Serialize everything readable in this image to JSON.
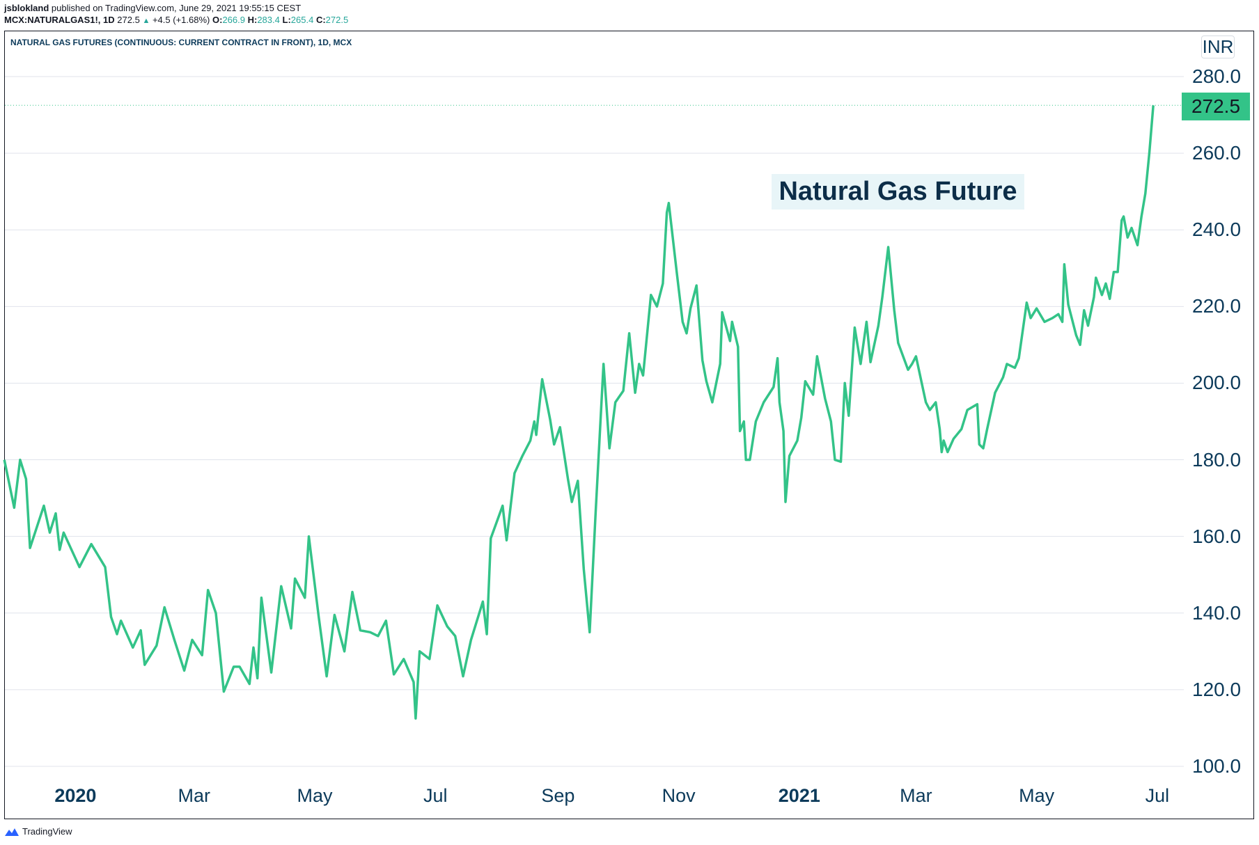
{
  "header": {
    "author": "jsblokland",
    "published": "published on TradingView.com, June 29, 2021 19:55:15 CEST",
    "symbol": "MCX:NATURALGAS1!, 1D",
    "last": "272.5",
    "change": "+4.5 (+1.68%)",
    "o_label": "O:",
    "o": "266.9",
    "h_label": "H:",
    "h": "283.4",
    "l_label": "L:",
    "l": "265.4",
    "c_label": "C:",
    "c": "272.5"
  },
  "chart_title": "NATURAL GAS FUTURES (CONTINUOUS: CURRENT CONTRACT IN FRONT), 1D, MCX",
  "currency": "INR",
  "annotation": "Natural Gas Future",
  "footer": "TradingView",
  "colors": {
    "line": "#33c388",
    "price_label": "#33c388",
    "text": "#0c3a5a",
    "grid": "#e0e3eb"
  },
  "chart_data": {
    "type": "line",
    "ylim": [
      100,
      280
    ],
    "yticks": [
      "280.0",
      "260.0",
      "240.0",
      "220.0",
      "200.0",
      "180.0",
      "160.0",
      "140.0",
      "120.0",
      "100.0"
    ],
    "ytick_values": [
      280,
      260,
      240,
      220,
      200,
      180,
      160,
      140,
      120,
      100
    ],
    "xticks": [
      {
        "label": "2020",
        "date": "2020-01-01",
        "year": true
      },
      {
        "label": "Mar",
        "date": "2020-03-01"
      },
      {
        "label": "May",
        "date": "2020-05-01"
      },
      {
        "label": "Jul",
        "date": "2020-07-01"
      },
      {
        "label": "Sep",
        "date": "2020-09-01"
      },
      {
        "label": "Nov",
        "date": "2020-11-01"
      },
      {
        "label": "2021",
        "date": "2021-01-01",
        "year": true
      },
      {
        "label": "Mar",
        "date": "2021-03-01"
      },
      {
        "label": "May",
        "date": "2021-05-01"
      },
      {
        "label": "Jul",
        "date": "2021-07-01"
      }
    ],
    "last_price": 272.5,
    "last_price_label": "272.5",
    "grid": true,
    "points": [
      [
        "2019-11-26",
        180
      ],
      [
        "2019-12-01",
        167.5
      ],
      [
        "2019-12-04",
        180
      ],
      [
        "2019-12-07",
        175
      ],
      [
        "2019-12-09",
        157
      ],
      [
        "2019-12-16",
        168
      ],
      [
        "2019-12-19",
        161
      ],
      [
        "2019-12-22",
        166
      ],
      [
        "2019-12-24",
        156.5
      ],
      [
        "2019-12-26",
        161
      ],
      [
        "2020-01-03",
        152
      ],
      [
        "2020-01-09",
        158
      ],
      [
        "2020-01-16",
        152
      ],
      [
        "2020-01-19",
        139
      ],
      [
        "2020-01-22",
        134.5
      ],
      [
        "2020-01-24",
        138
      ],
      [
        "2020-01-30",
        131
      ],
      [
        "2020-02-03",
        135.5
      ],
      [
        "2020-02-05",
        126.5
      ],
      [
        "2020-02-11",
        131.5
      ],
      [
        "2020-02-15",
        141.5
      ],
      [
        "2020-02-20",
        133
      ],
      [
        "2020-02-25",
        125
      ],
      [
        "2020-02-29",
        133
      ],
      [
        "2020-03-05",
        129
      ],
      [
        "2020-03-08",
        146
      ],
      [
        "2020-03-12",
        140
      ],
      [
        "2020-03-16",
        119.5
      ],
      [
        "2020-03-21",
        126
      ],
      [
        "2020-03-24",
        126
      ],
      [
        "2020-03-29",
        121.5
      ],
      [
        "2020-03-31",
        131
      ],
      [
        "2020-04-02",
        123
      ],
      [
        "2020-04-04",
        144
      ],
      [
        "2020-04-09",
        124.5
      ],
      [
        "2020-04-14",
        147
      ],
      [
        "2020-04-19",
        136
      ],
      [
        "2020-04-21",
        149
      ],
      [
        "2020-04-26",
        144
      ],
      [
        "2020-04-28",
        160
      ],
      [
        "2020-05-03",
        139
      ],
      [
        "2020-05-07",
        123.5
      ],
      [
        "2020-05-11",
        139.5
      ],
      [
        "2020-05-16",
        130
      ],
      [
        "2020-05-20",
        145.5
      ],
      [
        "2020-05-24",
        135.5
      ],
      [
        "2020-05-29",
        135
      ],
      [
        "2020-06-02",
        134
      ],
      [
        "2020-06-06",
        138
      ],
      [
        "2020-06-10",
        124
      ],
      [
        "2020-06-15",
        128
      ],
      [
        "2020-06-20",
        122
      ],
      [
        "2020-06-21",
        112.5
      ],
      [
        "2020-06-23",
        130
      ],
      [
        "2020-06-28",
        128
      ],
      [
        "2020-07-02",
        142
      ],
      [
        "2020-07-07",
        136.5
      ],
      [
        "2020-07-11",
        134
      ],
      [
        "2020-07-15",
        123.5
      ],
      [
        "2020-07-19",
        133
      ],
      [
        "2020-07-25",
        143
      ],
      [
        "2020-07-27",
        134.5
      ],
      [
        "2020-07-29",
        159.5
      ],
      [
        "2020-08-04",
        168
      ],
      [
        "2020-08-06",
        159
      ],
      [
        "2020-08-10",
        176.5
      ],
      [
        "2020-08-14",
        181
      ],
      [
        "2020-08-18",
        185
      ],
      [
        "2020-08-20",
        190
      ],
      [
        "2020-08-21",
        186.5
      ],
      [
        "2020-08-24",
        201
      ],
      [
        "2020-08-28",
        190.5
      ],
      [
        "2020-08-30",
        184
      ],
      [
        "2020-09-02",
        188.5
      ],
      [
        "2020-09-06",
        175
      ],
      [
        "2020-09-08",
        169
      ],
      [
        "2020-09-11",
        174.5
      ],
      [
        "2020-09-14",
        151.5
      ],
      [
        "2020-09-17",
        135
      ],
      [
        "2020-09-20",
        166
      ],
      [
        "2020-09-24",
        205
      ],
      [
        "2020-09-27",
        183
      ],
      [
        "2020-09-30",
        195
      ],
      [
        "2020-10-04",
        198
      ],
      [
        "2020-10-07",
        213
      ],
      [
        "2020-10-10",
        197.5
      ],
      [
        "2020-10-12",
        205
      ],
      [
        "2020-10-14",
        202
      ],
      [
        "2020-10-18",
        223
      ],
      [
        "2020-10-21",
        220
      ],
      [
        "2020-10-24",
        226
      ],
      [
        "2020-10-26",
        244.5
      ],
      [
        "2020-10-27",
        247
      ],
      [
        "2020-10-31",
        229
      ],
      [
        "2020-11-03",
        216
      ],
      [
        "2020-11-05",
        213
      ],
      [
        "2020-11-07",
        219.5
      ],
      [
        "2020-11-10",
        225.5
      ],
      [
        "2020-11-13",
        206
      ],
      [
        "2020-11-15",
        200.5
      ],
      [
        "2020-11-18",
        195
      ],
      [
        "2020-11-22",
        205
      ],
      [
        "2020-11-23",
        218.5
      ],
      [
        "2020-11-27",
        211
      ],
      [
        "2020-11-28",
        216
      ],
      [
        "2020-12-01",
        209.5
      ],
      [
        "2020-12-02",
        187.5
      ],
      [
        "2020-12-04",
        190
      ],
      [
        "2020-12-05",
        180
      ],
      [
        "2020-12-07",
        180
      ],
      [
        "2020-12-10",
        190
      ],
      [
        "2020-12-14",
        195
      ],
      [
        "2020-12-19",
        199
      ],
      [
        "2020-12-21",
        206.5
      ],
      [
        "2020-12-22",
        195
      ],
      [
        "2020-12-24",
        187.5
      ],
      [
        "2020-12-25",
        169
      ],
      [
        "2020-12-27",
        181
      ],
      [
        "2020-12-31",
        185
      ],
      [
        "2021-01-02",
        191
      ],
      [
        "2021-01-04",
        200.5
      ],
      [
        "2021-01-08",
        197
      ],
      [
        "2021-01-10",
        207
      ],
      [
        "2021-01-14",
        196
      ],
      [
        "2021-01-17",
        190
      ],
      [
        "2021-01-19",
        180
      ],
      [
        "2021-01-22",
        179.5
      ],
      [
        "2021-01-24",
        200
      ],
      [
        "2021-01-26",
        191.5
      ],
      [
        "2021-01-29",
        214.5
      ],
      [
        "2021-02-01",
        205
      ],
      [
        "2021-02-04",
        216
      ],
      [
        "2021-02-06",
        205.5
      ],
      [
        "2021-02-10",
        215
      ],
      [
        "2021-02-12",
        222.5
      ],
      [
        "2021-02-15",
        235.5
      ],
      [
        "2021-02-18",
        219
      ],
      [
        "2021-02-20",
        210.5
      ],
      [
        "2021-02-25",
        203.5
      ],
      [
        "2021-02-27",
        205
      ],
      [
        "2021-03-01",
        207
      ],
      [
        "2021-03-06",
        195
      ],
      [
        "2021-03-08",
        193
      ],
      [
        "2021-03-11",
        195
      ],
      [
        "2021-03-13",
        188
      ],
      [
        "2021-03-14",
        182
      ],
      [
        "2021-03-15",
        185
      ],
      [
        "2021-03-17",
        182
      ],
      [
        "2021-03-20",
        185.5
      ],
      [
        "2021-03-24",
        188
      ],
      [
        "2021-03-27",
        193
      ],
      [
        "2021-04-01",
        194.5
      ],
      [
        "2021-04-02",
        184
      ],
      [
        "2021-04-04",
        183
      ],
      [
        "2021-04-06",
        188
      ],
      [
        "2021-04-10",
        197.5
      ],
      [
        "2021-04-14",
        201.5
      ],
      [
        "2021-04-16",
        205
      ],
      [
        "2021-04-20",
        204
      ],
      [
        "2021-04-22",
        206.5
      ],
      [
        "2021-04-26",
        221
      ],
      [
        "2021-04-28",
        217
      ],
      [
        "2021-05-01",
        219.5
      ],
      [
        "2021-05-05",
        216
      ],
      [
        "2021-05-09",
        217
      ],
      [
        "2021-05-12",
        218
      ],
      [
        "2021-05-14",
        216
      ],
      [
        "2021-05-15",
        231
      ],
      [
        "2021-05-17",
        220.5
      ],
      [
        "2021-05-21",
        212.5
      ],
      [
        "2021-05-23",
        210
      ],
      [
        "2021-05-25",
        219
      ],
      [
        "2021-05-27",
        215
      ],
      [
        "2021-05-30",
        222.5
      ],
      [
        "2021-05-31",
        227.5
      ],
      [
        "2021-06-03",
        223
      ],
      [
        "2021-06-05",
        226
      ],
      [
        "2021-06-07",
        222
      ],
      [
        "2021-06-09",
        229
      ],
      [
        "2021-06-11",
        229
      ],
      [
        "2021-06-13",
        242.5
      ],
      [
        "2021-06-14",
        243.5
      ],
      [
        "2021-06-16",
        238
      ],
      [
        "2021-06-18",
        240.5
      ],
      [
        "2021-06-21",
        236
      ],
      [
        "2021-06-23",
        243.5
      ],
      [
        "2021-06-25",
        249.5
      ],
      [
        "2021-06-27",
        260
      ],
      [
        "2021-06-29",
        272.5
      ]
    ]
  }
}
